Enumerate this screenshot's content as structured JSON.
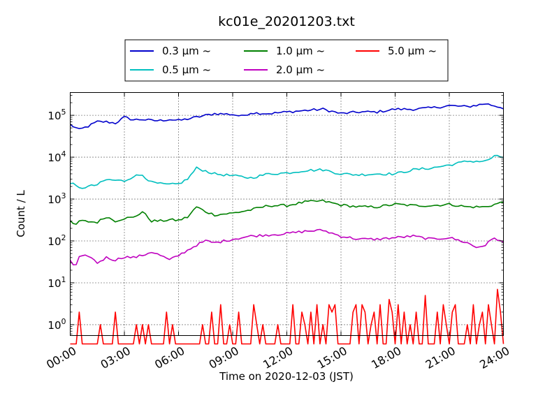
{
  "chart_data": {
    "type": "line",
    "title": "kc01e_20201203.txt",
    "xlabel": "Time on 2020-12-03 (JST)",
    "ylabel": "Count / L",
    "yscale": "log",
    "ylim": [
      0.55,
      350000
    ],
    "y_ticks": [
      {
        "value": 1,
        "base": "10",
        "exp": "0"
      },
      {
        "value": 10,
        "base": "10",
        "exp": "1"
      },
      {
        "value": 100,
        "base": "10",
        "exp": "2"
      },
      {
        "value": 1000,
        "base": "10",
        "exp": "3"
      },
      {
        "value": 10000,
        "base": "10",
        "exp": "4"
      },
      {
        "value": 100000,
        "base": "10",
        "exp": "5"
      }
    ],
    "x_ticks": [
      "00:00",
      "03:00",
      "06:00",
      "09:00",
      "12:00",
      "15:00",
      "18:00",
      "21:00",
      "24:00"
    ],
    "xlim_hours": [
      0,
      24
    ],
    "grid": true,
    "legend_position": "top-center",
    "legend_columns": 3,
    "sample_interval_minutes": 10,
    "series": [
      {
        "name": "0.3 μm ~",
        "color": "#0000cc",
        "anchors": [
          [
            0,
            60000
          ],
          [
            0.5,
            45000
          ],
          [
            1,
            55000
          ],
          [
            1.5,
            70000
          ],
          [
            2,
            70000
          ],
          [
            2.5,
            65000
          ],
          [
            3,
            90000
          ],
          [
            3.5,
            78000
          ],
          [
            4,
            80000
          ],
          [
            4.5,
            75000
          ],
          [
            5,
            75000
          ],
          [
            5.5,
            80000
          ],
          [
            6,
            75000
          ],
          [
            6.5,
            82000
          ],
          [
            7,
            90000
          ],
          [
            8,
            110000
          ],
          [
            9,
            105000
          ],
          [
            9.5,
            95000
          ],
          [
            10,
            115000
          ],
          [
            11,
            110000
          ],
          [
            12,
            120000
          ],
          [
            13,
            130000
          ],
          [
            14,
            140000
          ],
          [
            15,
            110000
          ],
          [
            16,
            120000
          ],
          [
            17,
            120000
          ],
          [
            18,
            140000
          ],
          [
            19,
            140000
          ],
          [
            20,
            150000
          ],
          [
            21,
            170000
          ],
          [
            22,
            160000
          ],
          [
            23,
            190000
          ],
          [
            24,
            150000
          ]
        ]
      },
      {
        "name": "1.0 μm ~",
        "color": "#008000",
        "anchors": [
          [
            0,
            300
          ],
          [
            0.25,
            220
          ],
          [
            0.5,
            300
          ],
          [
            1.5,
            280
          ],
          [
            2,
            380
          ],
          [
            2.5,
            300
          ],
          [
            3,
            350
          ],
          [
            3.5,
            360
          ],
          [
            4,
            500
          ],
          [
            4.5,
            300
          ],
          [
            5,
            300
          ],
          [
            5.5,
            320
          ],
          [
            6,
            310
          ],
          [
            6.5,
            370
          ],
          [
            7,
            650
          ],
          [
            7.5,
            500
          ],
          [
            8,
            420
          ],
          [
            9,
            460
          ],
          [
            10,
            550
          ],
          [
            11,
            700
          ],
          [
            12,
            700
          ],
          [
            13,
            850
          ],
          [
            14,
            900
          ],
          [
            15,
            720
          ],
          [
            16,
            650
          ],
          [
            17,
            650
          ],
          [
            18,
            750
          ],
          [
            19,
            700
          ],
          [
            20,
            700
          ],
          [
            21,
            750
          ],
          [
            22,
            650
          ],
          [
            23,
            650
          ],
          [
            24,
            850
          ]
        ]
      },
      {
        "name": "5.0 μm ~",
        "color": "#ff0000",
        "anchors": [
          [
            0,
            0.3
          ],
          [
            24,
            0.3
          ]
        ]
      },
      {
        "name": "0.5 μm ~",
        "color": "#00bfbf",
        "anchors": [
          [
            0,
            2500
          ],
          [
            0.5,
            1800
          ],
          [
            1.5,
            2200
          ],
          [
            2,
            2900
          ],
          [
            2.5,
            2800
          ],
          [
            3,
            2700
          ],
          [
            3.5,
            3500
          ],
          [
            4,
            3800
          ],
          [
            4.5,
            2500
          ],
          [
            5,
            2300
          ],
          [
            5.5,
            2200
          ],
          [
            6,
            2300
          ],
          [
            6.5,
            3000
          ],
          [
            7,
            5500
          ],
          [
            8,
            4000
          ],
          [
            9,
            3600
          ],
          [
            10,
            3200
          ],
          [
            11,
            4000
          ],
          [
            12,
            4200
          ],
          [
            13,
            4800
          ],
          [
            14,
            5000
          ],
          [
            15,
            4000
          ],
          [
            16,
            3800
          ],
          [
            17,
            4000
          ],
          [
            18,
            4000
          ],
          [
            19,
            5000
          ],
          [
            20,
            5500
          ],
          [
            21,
            6500
          ],
          [
            22,
            8000
          ],
          [
            23,
            8000
          ],
          [
            23.5,
            10500
          ],
          [
            24,
            10000
          ]
        ]
      },
      {
        "name": "2.0 μm ~",
        "color": "#bf00bf",
        "anchors": [
          [
            0,
            35
          ],
          [
            0.25,
            22
          ],
          [
            0.5,
            40
          ],
          [
            1,
            45
          ],
          [
            1.5,
            30
          ],
          [
            2,
            40
          ],
          [
            2.5,
            35
          ],
          [
            3,
            42
          ],
          [
            3.5,
            40
          ],
          [
            4,
            45
          ],
          [
            4.5,
            55
          ],
          [
            5,
            45
          ],
          [
            5.5,
            35
          ],
          [
            6,
            45
          ],
          [
            6.5,
            60
          ],
          [
            7,
            80
          ],
          [
            7.5,
            100
          ],
          [
            8,
            90
          ],
          [
            9,
            110
          ],
          [
            10,
            130
          ],
          [
            11,
            140
          ],
          [
            12,
            150
          ],
          [
            13,
            170
          ],
          [
            14,
            180
          ],
          [
            15,
            130
          ],
          [
            16,
            110
          ],
          [
            17,
            110
          ],
          [
            18,
            120
          ],
          [
            19,
            130
          ],
          [
            20,
            110
          ],
          [
            21,
            120
          ],
          [
            22,
            90
          ],
          [
            22.5,
            70
          ],
          [
            23,
            80
          ],
          [
            23.5,
            120
          ],
          [
            24,
            90
          ]
        ]
      }
    ],
    "series_5um_nonzero": [
      [
        0.58,
        2
      ],
      [
        1.7,
        1
      ],
      [
        2.5,
        2
      ],
      [
        3.6,
        1
      ],
      [
        4.0,
        1
      ],
      [
        4.3,
        1
      ],
      [
        5.4,
        2
      ],
      [
        5.6,
        1
      ],
      [
        7.3,
        1
      ],
      [
        7.9,
        2
      ],
      [
        8.3,
        1
      ],
      [
        8.4,
        3
      ],
      [
        8.8,
        1
      ],
      [
        9.3,
        2
      ],
      [
        10.1,
        3
      ],
      [
        10.3,
        1
      ],
      [
        10.6,
        1
      ],
      [
        11.5,
        1
      ],
      [
        12.3,
        3
      ],
      [
        12.8,
        2
      ],
      [
        13.0,
        1
      ],
      [
        13.3,
        2
      ],
      [
        13.6,
        3
      ],
      [
        14.0,
        1
      ],
      [
        14.4,
        3
      ],
      [
        14.5,
        2
      ],
      [
        14.6,
        3
      ],
      [
        15.6,
        2
      ],
      [
        15.8,
        3
      ],
      [
        16.2,
        3
      ],
      [
        16.4,
        2
      ],
      [
        16.6,
        1
      ],
      [
        16.8,
        2
      ],
      [
        17.2,
        3
      ],
      [
        17.6,
        4
      ],
      [
        17.8,
        2
      ],
      [
        18.2,
        3
      ],
      [
        18.5,
        2
      ],
      [
        18.8,
        1
      ],
      [
        19.1,
        2
      ],
      [
        19.6,
        2
      ],
      [
        19.7,
        5
      ],
      [
        20.4,
        2
      ],
      [
        20.6,
        3
      ],
      [
        20.8,
        1
      ],
      [
        21.2,
        2
      ],
      [
        21.4,
        3
      ],
      [
        22.0,
        1
      ],
      [
        22.4,
        3
      ],
      [
        22.6,
        1
      ],
      [
        22.9,
        2
      ],
      [
        23.2,
        3
      ],
      [
        23.4,
        1
      ],
      [
        23.7,
        7
      ],
      [
        23.8,
        2
      ]
    ],
    "legend": [
      {
        "label": "0.3 μm ~",
        "color": "#0000cc"
      },
      {
        "label": "1.0 μm ~",
        "color": "#008000"
      },
      {
        "label": "5.0 μm ~",
        "color": "#ff0000"
      },
      {
        "label": "0.5 μm ~",
        "color": "#00bfbf"
      },
      {
        "label": "2.0 μm ~",
        "color": "#bf00bf"
      }
    ]
  }
}
